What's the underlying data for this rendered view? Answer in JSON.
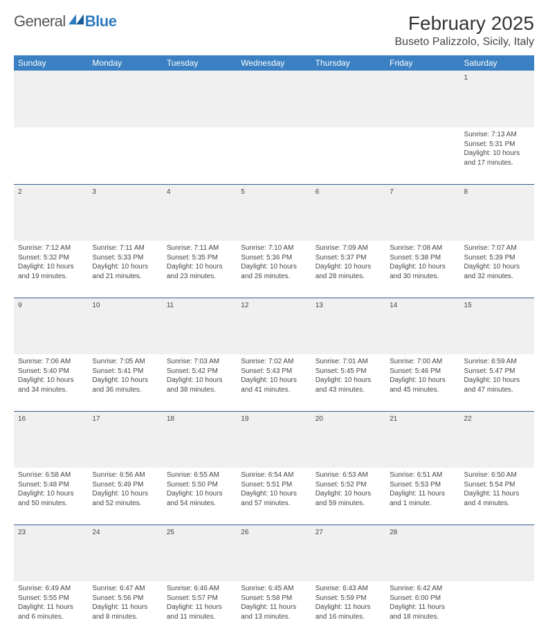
{
  "brand": {
    "general": "General",
    "blue": "Blue"
  },
  "title": "February 2025",
  "location": "Buseto Palizzolo, Sicily, Italy",
  "colors": {
    "header_bg": "#3a80c2",
    "header_text": "#ffffff",
    "daynum_bg": "#f0f0f0",
    "row_divider": "#2f5f8f",
    "logo_blue": "#2f7bbf"
  },
  "weekdays": [
    "Sunday",
    "Monday",
    "Tuesday",
    "Wednesday",
    "Thursday",
    "Friday",
    "Saturday"
  ],
  "weeks": [
    {
      "nums": [
        "",
        "",
        "",
        "",
        "",
        "",
        "1"
      ],
      "cells": [
        null,
        null,
        null,
        null,
        null,
        null,
        {
          "sunrise": "Sunrise: 7:13 AM",
          "sunset": "Sunset: 5:31 PM",
          "day1": "Daylight: 10 hours",
          "day2": "and 17 minutes."
        }
      ]
    },
    {
      "nums": [
        "2",
        "3",
        "4",
        "5",
        "6",
        "7",
        "8"
      ],
      "cells": [
        {
          "sunrise": "Sunrise: 7:12 AM",
          "sunset": "Sunset: 5:32 PM",
          "day1": "Daylight: 10 hours",
          "day2": "and 19 minutes."
        },
        {
          "sunrise": "Sunrise: 7:11 AM",
          "sunset": "Sunset: 5:33 PM",
          "day1": "Daylight: 10 hours",
          "day2": "and 21 minutes."
        },
        {
          "sunrise": "Sunrise: 7:11 AM",
          "sunset": "Sunset: 5:35 PM",
          "day1": "Daylight: 10 hours",
          "day2": "and 23 minutes."
        },
        {
          "sunrise": "Sunrise: 7:10 AM",
          "sunset": "Sunset: 5:36 PM",
          "day1": "Daylight: 10 hours",
          "day2": "and 26 minutes."
        },
        {
          "sunrise": "Sunrise: 7:09 AM",
          "sunset": "Sunset: 5:37 PM",
          "day1": "Daylight: 10 hours",
          "day2": "and 28 minutes."
        },
        {
          "sunrise": "Sunrise: 7:08 AM",
          "sunset": "Sunset: 5:38 PM",
          "day1": "Daylight: 10 hours",
          "day2": "and 30 minutes."
        },
        {
          "sunrise": "Sunrise: 7:07 AM",
          "sunset": "Sunset: 5:39 PM",
          "day1": "Daylight: 10 hours",
          "day2": "and 32 minutes."
        }
      ]
    },
    {
      "nums": [
        "9",
        "10",
        "11",
        "12",
        "13",
        "14",
        "15"
      ],
      "cells": [
        {
          "sunrise": "Sunrise: 7:06 AM",
          "sunset": "Sunset: 5:40 PM",
          "day1": "Daylight: 10 hours",
          "day2": "and 34 minutes."
        },
        {
          "sunrise": "Sunrise: 7:05 AM",
          "sunset": "Sunset: 5:41 PM",
          "day1": "Daylight: 10 hours",
          "day2": "and 36 minutes."
        },
        {
          "sunrise": "Sunrise: 7:03 AM",
          "sunset": "Sunset: 5:42 PM",
          "day1": "Daylight: 10 hours",
          "day2": "and 38 minutes."
        },
        {
          "sunrise": "Sunrise: 7:02 AM",
          "sunset": "Sunset: 5:43 PM",
          "day1": "Daylight: 10 hours",
          "day2": "and 41 minutes."
        },
        {
          "sunrise": "Sunrise: 7:01 AM",
          "sunset": "Sunset: 5:45 PM",
          "day1": "Daylight: 10 hours",
          "day2": "and 43 minutes."
        },
        {
          "sunrise": "Sunrise: 7:00 AM",
          "sunset": "Sunset: 5:46 PM",
          "day1": "Daylight: 10 hours",
          "day2": "and 45 minutes."
        },
        {
          "sunrise": "Sunrise: 6:59 AM",
          "sunset": "Sunset: 5:47 PM",
          "day1": "Daylight: 10 hours",
          "day2": "and 47 minutes."
        }
      ]
    },
    {
      "nums": [
        "16",
        "17",
        "18",
        "19",
        "20",
        "21",
        "22"
      ],
      "cells": [
        {
          "sunrise": "Sunrise: 6:58 AM",
          "sunset": "Sunset: 5:48 PM",
          "day1": "Daylight: 10 hours",
          "day2": "and 50 minutes."
        },
        {
          "sunrise": "Sunrise: 6:56 AM",
          "sunset": "Sunset: 5:49 PM",
          "day1": "Daylight: 10 hours",
          "day2": "and 52 minutes."
        },
        {
          "sunrise": "Sunrise: 6:55 AM",
          "sunset": "Sunset: 5:50 PM",
          "day1": "Daylight: 10 hours",
          "day2": "and 54 minutes."
        },
        {
          "sunrise": "Sunrise: 6:54 AM",
          "sunset": "Sunset: 5:51 PM",
          "day1": "Daylight: 10 hours",
          "day2": "and 57 minutes."
        },
        {
          "sunrise": "Sunrise: 6:53 AM",
          "sunset": "Sunset: 5:52 PM",
          "day1": "Daylight: 10 hours",
          "day2": "and 59 minutes."
        },
        {
          "sunrise": "Sunrise: 6:51 AM",
          "sunset": "Sunset: 5:53 PM",
          "day1": "Daylight: 11 hours",
          "day2": "and 1 minute."
        },
        {
          "sunrise": "Sunrise: 6:50 AM",
          "sunset": "Sunset: 5:54 PM",
          "day1": "Daylight: 11 hours",
          "day2": "and 4 minutes."
        }
      ]
    },
    {
      "nums": [
        "23",
        "24",
        "25",
        "26",
        "27",
        "28",
        ""
      ],
      "cells": [
        {
          "sunrise": "Sunrise: 6:49 AM",
          "sunset": "Sunset: 5:55 PM",
          "day1": "Daylight: 11 hours",
          "day2": "and 6 minutes."
        },
        {
          "sunrise": "Sunrise: 6:47 AM",
          "sunset": "Sunset: 5:56 PM",
          "day1": "Daylight: 11 hours",
          "day2": "and 8 minutes."
        },
        {
          "sunrise": "Sunrise: 6:46 AM",
          "sunset": "Sunset: 5:57 PM",
          "day1": "Daylight: 11 hours",
          "day2": "and 11 minutes."
        },
        {
          "sunrise": "Sunrise: 6:45 AM",
          "sunset": "Sunset: 5:58 PM",
          "day1": "Daylight: 11 hours",
          "day2": "and 13 minutes."
        },
        {
          "sunrise": "Sunrise: 6:43 AM",
          "sunset": "Sunset: 5:59 PM",
          "day1": "Daylight: 11 hours",
          "day2": "and 16 minutes."
        },
        {
          "sunrise": "Sunrise: 6:42 AM",
          "sunset": "Sunset: 6:00 PM",
          "day1": "Daylight: 11 hours",
          "day2": "and 18 minutes."
        },
        null
      ]
    }
  ]
}
